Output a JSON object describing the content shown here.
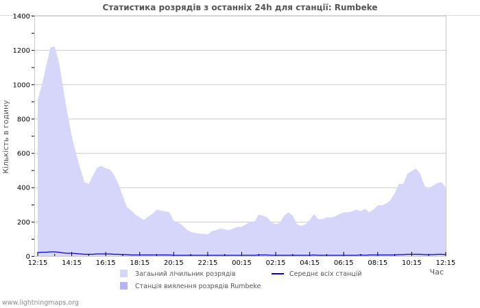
{
  "page": {
    "footer_link": "www.lightningmaps.org"
  },
  "chart_data": {
    "type": "area",
    "title": "Статистика розрядів з останніх 24h для станції: Rumbeke",
    "xlabel": "Час",
    "ylabel": "Кількість в годину",
    "ylim": [
      0,
      1400
    ],
    "y_ticks": [
      0,
      200,
      400,
      600,
      800,
      1000,
      1200,
      1400
    ],
    "x_tick_labels": [
      "12:15",
      "14:15",
      "16:15",
      "18:15",
      "20:15",
      "22:15",
      "00:15",
      "02:15",
      "04:15",
      "06:15",
      "08:15",
      "10:15",
      "12:15"
    ],
    "grid": true,
    "legend_position": "bottom",
    "legend": [
      {
        "label": "Загаьний лічильник розрядів",
        "type": "area",
        "color": "#d6d6fb"
      },
      {
        "label": "Середнє всіх станцій",
        "type": "line",
        "color": "#0000cc"
      },
      {
        "label": "Станція виялення розрядів Rumbeke",
        "type": "area",
        "color": "#b3b3f5"
      }
    ],
    "x_interval_minutes": 15,
    "x_start": "12:15",
    "series": [
      {
        "name": "Загаьний лічильник розрядів",
        "color": "#d6d6fb",
        "values": [
          910,
          1000,
          1110,
          1215,
          1220,
          1130,
          980,
          830,
          700,
          600,
          510,
          430,
          420,
          470,
          515,
          525,
          510,
          505,
          470,
          420,
          350,
          285,
          265,
          240,
          225,
          210,
          230,
          245,
          270,
          265,
          260,
          255,
          205,
          195,
          180,
          155,
          140,
          135,
          130,
          130,
          125,
          145,
          150,
          160,
          155,
          150,
          160,
          170,
          170,
          185,
          200,
          200,
          240,
          235,
          225,
          195,
          185,
          195,
          235,
          255,
          235,
          185,
          175,
          185,
          210,
          245,
          215,
          215,
          225,
          225,
          230,
          245,
          255,
          255,
          260,
          270,
          260,
          275,
          255,
          270,
          295,
          295,
          305,
          325,
          365,
          420,
          420,
          480,
          495,
          510,
          480,
          410,
          390,
          410,
          425,
          430,
          400
        ]
      },
      {
        "name": "Середнє всіх станцій",
        "color": "#0000cc",
        "values": [
          20,
          22,
          22,
          24,
          24,
          22,
          18,
          16,
          16,
          14,
          12,
          10,
          10,
          10,
          12,
          12,
          12,
          12,
          10,
          10,
          8,
          8,
          6,
          6,
          6,
          6,
          6,
          6,
          6,
          6,
          6,
          6,
          4,
          4,
          4,
          4,
          4,
          4,
          4,
          4,
          4,
          4,
          4,
          4,
          4,
          4,
          4,
          4,
          4,
          4,
          4,
          4,
          6,
          6,
          6,
          4,
          4,
          4,
          4,
          4,
          4,
          4,
          4,
          4,
          4,
          6,
          4,
          4,
          4,
          4,
          4,
          4,
          4,
          4,
          4,
          4,
          6,
          4,
          6,
          6,
          6,
          6,
          6,
          6,
          6,
          8,
          8,
          10,
          10,
          10,
          10,
          8,
          8,
          8,
          10,
          10,
          8
        ]
      },
      {
        "name": "Станція виялення розрядів Rumbeke",
        "color": "#b3b3f5",
        "values": []
      }
    ]
  }
}
